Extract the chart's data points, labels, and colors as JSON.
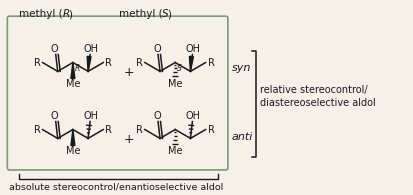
{
  "bg_color": "#f5f0e8",
  "box_color": "#7a9a7a",
  "text_color": "#1a1a1a",
  "syn_label": "syn",
  "anti_label": "anti",
  "rel_stereo_line1": "relative stereocontrol/",
  "rel_stereo_line2": "diastereoselective aldol",
  "abs_stereo": "absolute stereocontrol/enantioselective aldol",
  "Me_label": "Me",
  "O_label": "O",
  "OH_label": "OH",
  "R_group": "R",
  "methyl_R": "methyl (",
  "methyl_R_italic": "R",
  "methyl_S": "methyl (",
  "methyl_S_italic": "S",
  "close_paren": ")",
  "plus": "+"
}
